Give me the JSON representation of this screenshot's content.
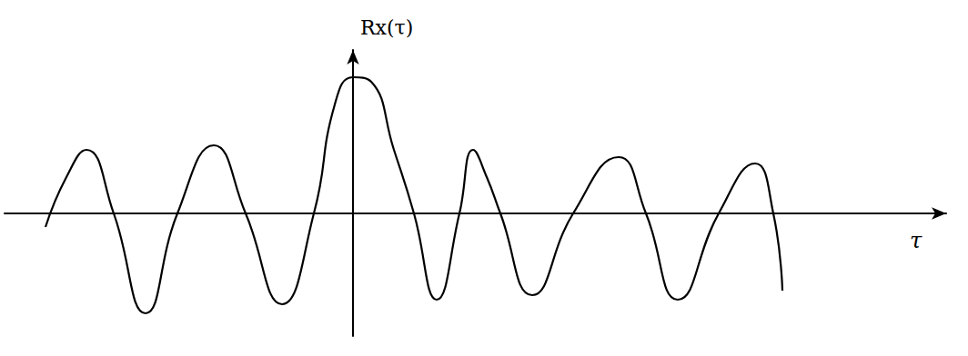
{
  "chart_data": {
    "type": "line",
    "x_label": "τ",
    "y_label": "Rx(τ)",
    "x": [
      -3.38,
      -3.15,
      -2.93,
      -2.63,
      -2.28,
      -1.93,
      -1.53,
      -1.18,
      -0.78,
      -0.43,
      -0.2,
      0,
      0.2,
      0.45,
      0.67,
      0.92,
      1.17,
      1.32,
      1.47,
      1.62,
      1.97,
      2.42,
      2.92,
      3.22,
      3.57,
      4.02,
      4.42,
      4.62,
      4.72
    ],
    "values": [
      -0.15,
      0.4,
      0.7,
      0,
      -1.1,
      0,
      0.75,
      0,
      -1.0,
      0,
      1.2,
      1.5,
      1.45,
      0.7,
      0,
      -0.95,
      0,
      0.7,
      0.4,
      0,
      -0.9,
      0,
      0.62,
      0,
      -0.95,
      0,
      0.55,
      0,
      -0.85
    ],
    "xlim": [
      -3.83,
      6.52
    ],
    "ylim": [
      -1.35,
      1.8
    ],
    "tick_labels": false,
    "grid": false,
    "color": "#000000"
  }
}
